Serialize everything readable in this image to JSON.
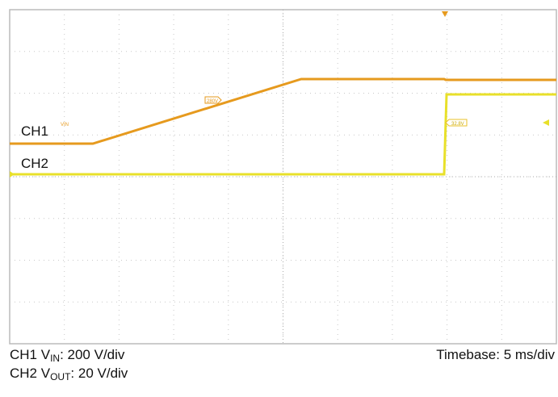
{
  "plot": {
    "ch1_label": "CH1",
    "ch1_tag": "VIN",
    "ch2_label": "CH2",
    "ch1_marker": "280V",
    "ch2_marker": "32.8V"
  },
  "caption": {
    "line1": {
      "prefix": "CH1 V",
      "sub": "IN",
      "suffix": ": 200 V/div"
    },
    "line2": {
      "prefix": "CH2 V",
      "sub": "OUT",
      "suffix": ": 20 V/div"
    },
    "timebase": "Timebase: 5 ms/div"
  }
}
